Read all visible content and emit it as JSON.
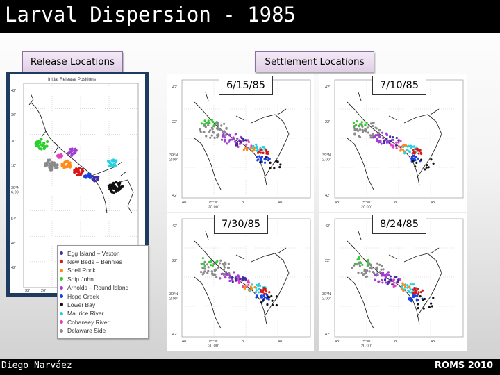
{
  "slide": {
    "title": "Larval Dispersion - 1985",
    "release_label": "Release Locations",
    "settlement_label": "Settlement Locations",
    "footer_author": "Diego Narváez",
    "footer_event": "ROMS 2010"
  },
  "release_map": {
    "title": "Initial Release Positions",
    "lat_ticks": [
      "42'",
      "36'",
      "30'",
      "18'",
      "39°N\n6.00'",
      "54'",
      "48'",
      "42'"
    ],
    "lon_ticks": [
      "33'",
      "26'"
    ]
  },
  "legend": [
    {
      "label": "Egg Island – Vexton",
      "color": "#3b2fa8"
    },
    {
      "label": "New Beds – Bennies",
      "color": "#d81818"
    },
    {
      "label": "Shell Rock",
      "color": "#ff8c1a"
    },
    {
      "label": "Ship John",
      "color": "#2dd02d"
    },
    {
      "label": "Arnolds – Round Island",
      "color": "#a040d0"
    },
    {
      "label": "Hope Creek",
      "color": "#1a40e0"
    },
    {
      "label": "Lower Bay",
      "color": "#111111"
    },
    {
      "label": "Maurice River",
      "color": "#25d0e0"
    },
    {
      "label": "Cohansey River",
      "color": "#e040c0"
    },
    {
      "label": "Delaware Side",
      "color": "#8a8a8a"
    }
  ],
  "settlement_maps": [
    {
      "date": "6/15/85",
      "lat_top": "42'",
      "lat_mid": "22'",
      "lat_label": "39°N\n2.00'",
      "lat_bottom": "42'",
      "lon_ticks": [
        "48'",
        "75°W\n20.00'",
        "8'",
        "48'"
      ]
    },
    {
      "date": "7/10/85",
      "lat_top": "42'",
      "lat_mid": "22'",
      "lat_label": "39°N\n2.00'",
      "lat_bottom": "42'",
      "lon_ticks": [
        "48'",
        "75°W\n20.00'",
        "8'",
        "48'"
      ]
    },
    {
      "date": "7/30/85",
      "lat_top": "42'",
      "lat_mid": "22'",
      "lat_label": "39°N\n2.00'",
      "lat_bottom": "42'",
      "lon_ticks": [
        "48'",
        "75°W\n20.00'",
        "8'",
        "48'"
      ]
    },
    {
      "date": "8/24/85",
      "lat_top": "42'",
      "lat_mid": "22'",
      "lat_label": "39°N\n2.00'",
      "lat_bottom": "42'",
      "lon_ticks": [
        "48'",
        "75°W\n20.00'",
        "8'",
        "48'"
      ]
    }
  ]
}
